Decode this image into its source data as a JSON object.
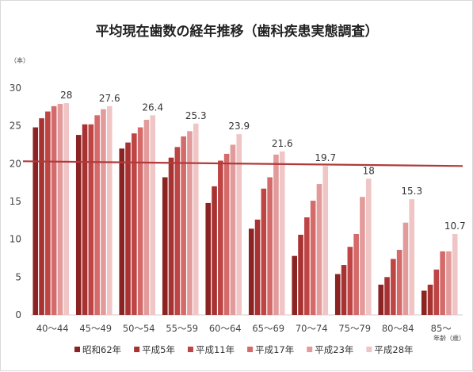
{
  "chart_data": {
    "type": "bar",
    "title": "平均現在歯数の経年推移（歯科疾患実態調査）",
    "y_unit": "（本）",
    "x_unit": "年齢（歳）",
    "ylim": [
      0,
      30
    ],
    "yticks": [
      0,
      5,
      10,
      15,
      20,
      25,
      30
    ],
    "grid": false,
    "legend_position": "bottom",
    "reference_line": 20,
    "categories": [
      "40～44",
      "45～49",
      "50～54",
      "55～59",
      "60～64",
      "65～69",
      "70～74",
      "75～79",
      "80～84",
      "85～"
    ],
    "series": [
      {
        "name": "昭和62年",
        "color": "#8b2323",
        "values": [
          24.8,
          23.8,
          22.0,
          18.2,
          14.8,
          11.4,
          7.8,
          5.4,
          4.0,
          3.2
        ]
      },
      {
        "name": "平成5年",
        "color": "#a83232",
        "values": [
          26.0,
          25.2,
          22.8,
          20.8,
          17.0,
          12.6,
          10.6,
          6.6,
          5.0,
          4.0
        ]
      },
      {
        "name": "平成11年",
        "color": "#bf4545",
        "values": [
          26.9,
          25.2,
          24.0,
          22.2,
          20.4,
          16.7,
          12.9,
          9.0,
          7.4,
          6.0
        ]
      },
      {
        "name": "平成17年",
        "color": "#d46a6a",
        "values": [
          27.6,
          26.4,
          24.8,
          23.6,
          21.3,
          18.2,
          15.1,
          10.7,
          8.6,
          8.4
        ]
      },
      {
        "name": "平成23年",
        "color": "#e39a9a",
        "values": [
          27.9,
          27.2,
          25.8,
          24.3,
          22.5,
          21.2,
          17.3,
          15.6,
          12.2,
          8.4
        ]
      },
      {
        "name": "平成28年",
        "color": "#f0c5c5",
        "values": [
          28,
          27.6,
          26.4,
          25.3,
          23.9,
          21.6,
          19.7,
          18,
          15.3,
          10.7
        ]
      }
    ],
    "data_labels": [
      "28",
      "27.6",
      "26.4",
      "25.3",
      "23.9",
      "21.6",
      "19.7",
      "18",
      "15.3",
      "10.7"
    ]
  }
}
